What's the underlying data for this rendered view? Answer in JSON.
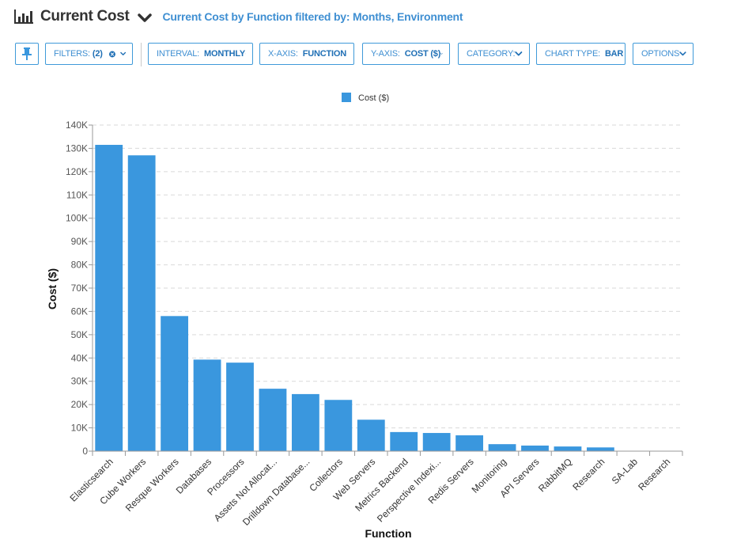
{
  "header": {
    "title": "Current Cost",
    "subtitle": "Current Cost by Function filtered by: Months, Environment"
  },
  "toolbar": {
    "filters": {
      "label": "FILTERS:",
      "value": "(2)"
    },
    "interval": {
      "label": "INTERVAL:",
      "value": "MONTHLY"
    },
    "xaxis": {
      "label": "X-AXIS:",
      "value": "FUNCTION"
    },
    "yaxis": {
      "label": "Y-AXIS:",
      "value": "COST ($)"
    },
    "category": {
      "label": "CATEGORY:",
      "value": ""
    },
    "charttype": {
      "label": "CHART TYPE:",
      "value": "BAR"
    },
    "options": {
      "label": "OPTIONS",
      "value": ""
    }
  },
  "icons": {
    "chart": "bar-chart-icon",
    "pin": "pin-icon",
    "clear": "clear-filter-icon",
    "chevron": "chevron-down-icon"
  },
  "colors": {
    "bar": "#3a97de",
    "accent": "#3f8fd2",
    "grid": "#d9d9d9"
  },
  "chart_data": {
    "type": "bar",
    "title": "",
    "xlabel": "Function",
    "ylabel": "Cost ($)",
    "ylim": [
      0,
      140000
    ],
    "yticks": [
      0,
      10000,
      20000,
      30000,
      40000,
      50000,
      60000,
      70000,
      80000,
      90000,
      100000,
      110000,
      120000,
      130000,
      140000
    ],
    "ytick_labels": [
      "0",
      "10K",
      "20K",
      "30K",
      "40K",
      "50K",
      "60K",
      "70K",
      "80K",
      "90K",
      "100K",
      "110K",
      "120K",
      "130K",
      "140K"
    ],
    "grid": true,
    "legend_position": "top-center",
    "categories": [
      "Elasticsearch",
      "Cube Workers",
      "Resque Workers",
      "Databases",
      "Processors",
      "Assets Not Allocat...",
      "Drilldown Database...",
      "Collectors",
      "Web Servers",
      "Metrics Backend",
      "Perspective Indexi...",
      "Redis Servers",
      "Monitoring",
      "API Servers",
      "RabbitMQ",
      "Research",
      "SA-Lab",
      "Research"
    ],
    "series": [
      {
        "name": "Cost ($)",
        "values": [
          131500,
          127000,
          58000,
          39300,
          38000,
          26800,
          24500,
          22000,
          13500,
          8200,
          7800,
          6800,
          3000,
          2400,
          2000,
          1600,
          0,
          0
        ]
      }
    ]
  }
}
